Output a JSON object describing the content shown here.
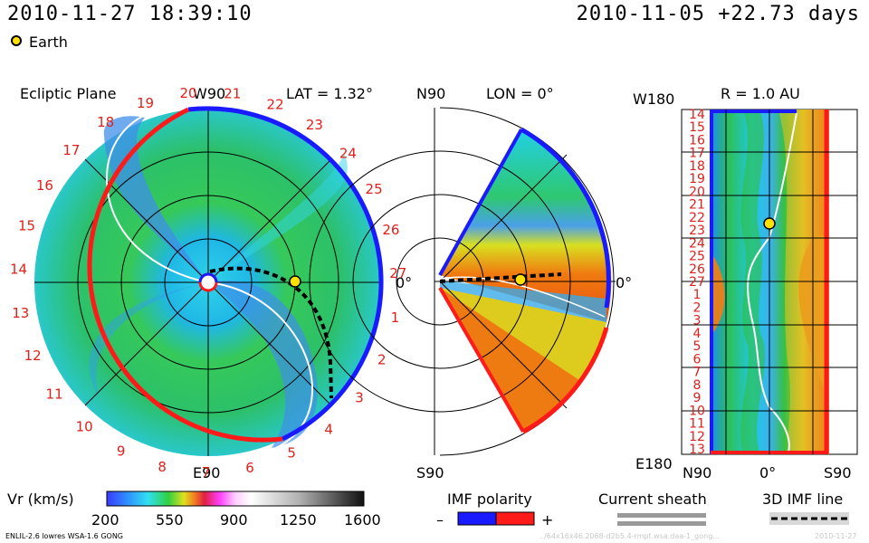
{
  "header": {
    "datetime": "2010-11-27 18:39:10",
    "run_info": "2010-11-05 +22.73 days",
    "earth_legend": "Earth"
  },
  "colors": {
    "earth": "#ffe000",
    "positive_polarity": "#ff0000",
    "negative_polarity": "#0000ff",
    "label_red": "#e0201a"
  },
  "chart_data": [
    {
      "type": "heatmap",
      "title": "Ecliptic Plane",
      "annotation": "LAT = 1.32°",
      "top_label": "W90",
      "bottom_label": "E90",
      "right_label": "0°",
      "day_labels": [
        "20",
        "21",
        "22",
        "23",
        "24",
        "25",
        "26",
        "27",
        "1",
        "2",
        "3",
        "4",
        "5",
        "6",
        "7",
        "8",
        "9",
        "10",
        "11",
        "12",
        "13",
        "14",
        "15",
        "16",
        "17",
        "18",
        "19"
      ]
    },
    {
      "type": "heatmap",
      "title": "LON = 0°",
      "top_label": "N90",
      "bottom_label": "S90",
      "right_label": "0°"
    },
    {
      "type": "heatmap",
      "title": "R = 1.0 AU",
      "top_left_label": "W180",
      "bottom_left_label": "E180",
      "x_tick_labels": [
        "N90",
        "0°",
        "S90"
      ],
      "y_tick_labels": [
        "14",
        "15",
        "16",
        "17",
        "18",
        "19",
        "20",
        "21",
        "22",
        "23",
        "24",
        "25",
        "26",
        "27",
        "1",
        "2",
        "3",
        "4",
        "5",
        "6",
        "7",
        "8",
        "9",
        "10",
        "11",
        "12",
        "13"
      ]
    }
  ],
  "colorbar": {
    "label": "Vr (km/s)",
    "ticks": [
      "200",
      "550",
      "900",
      "1250",
      "1600"
    ],
    "range": [
      200,
      1600
    ]
  },
  "legends": {
    "imf_polarity": "IMF polarity",
    "minus": "–",
    "plus": "+",
    "current_sheath": "Current sheath",
    "imf_line": "3D IMF line"
  },
  "footer": {
    "model": "ENLIL-2.6 lowres WSA-1.6 GONG",
    "run_id": "../64x16x46.2068-d2b5.4-rmpt.wsa.daa-1_gong...",
    "date_short": "2010-11-27"
  }
}
